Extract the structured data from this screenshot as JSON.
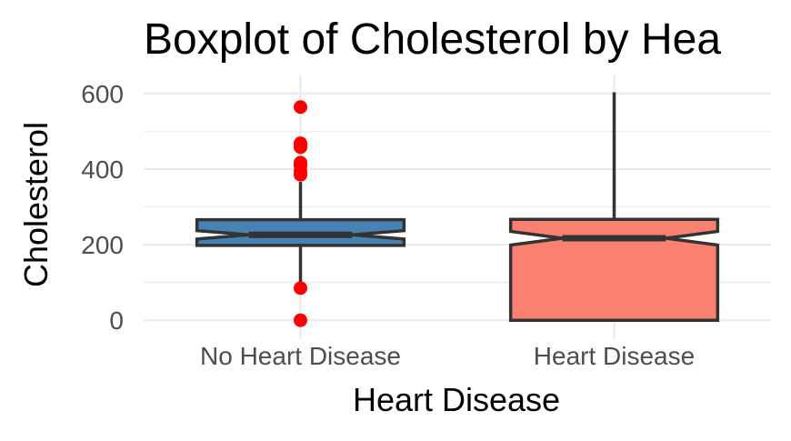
{
  "chart_data": {
    "type": "boxplot",
    "title": "Boxplot of Cholesterol by Hea",
    "xlabel": "Heart Disease",
    "ylabel": "Cholesterol",
    "ylim": [
      -50,
      650
    ],
    "y_ticks": [
      0,
      200,
      400,
      600
    ],
    "y_tick_labels": [
      "0",
      "200",
      "400",
      "600"
    ],
    "grid": true,
    "notched": true,
    "categories": [
      "No Heart Disease",
      "Heart Disease"
    ],
    "boxes": [
      {
        "category": "No Heart Disease",
        "min": 100,
        "q1": 198,
        "median": 226,
        "q3": 266,
        "max": 366,
        "notch_low": 215,
        "notch_high": 237,
        "fill": "#4682B4",
        "outliers": [
          564,
          468,
          458,
          417,
          409,
          394,
          385,
          85,
          0
        ]
      },
      {
        "category": "Heart Disease",
        "min": 0,
        "q1": 0,
        "median": 217,
        "q3": 267,
        "max": 603,
        "notch_low": 199,
        "notch_high": 235,
        "fill": "#FA8072",
        "outliers": []
      }
    ],
    "outlier_color": "#FF0000"
  }
}
